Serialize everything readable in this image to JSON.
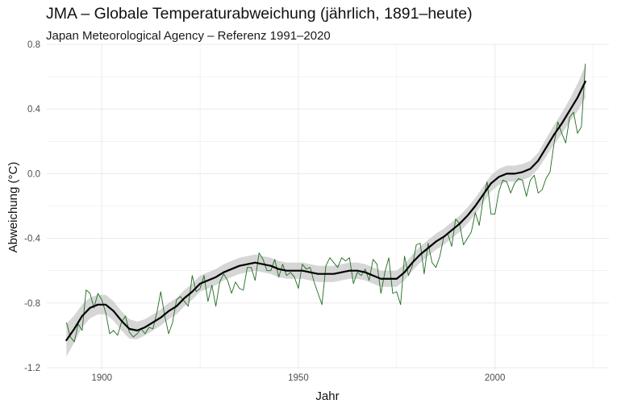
{
  "chart_data": {
    "type": "line",
    "title": "JMA – Globale Temperaturabweichung (jährlich, 1891–heute)",
    "subtitle": "Japan Meteorological Agency – Referenz 1991–2020",
    "xlabel": "Jahr",
    "ylabel": "Abweichung (°C)",
    "xlim": [
      1886,
      2029
    ],
    "ylim": [
      -1.21,
      0.8
    ],
    "x_ticks": [
      1900,
      1950,
      2000
    ],
    "x_tick_labels": [
      "1900",
      "1950",
      "2000"
    ],
    "y_ticks": [
      -1.2,
      -0.8,
      -0.4,
      0.0,
      0.4,
      0.8
    ],
    "y_tick_labels": [
      "-1.2",
      "-0.8",
      "-0.4",
      "0.0",
      "0.4",
      "0.8"
    ],
    "grid": true,
    "colors": {
      "annual": "#1f6b1f",
      "smooth": "#000000",
      "band": "#c8c8c8",
      "grid": "#ebebeb"
    },
    "series": [
      {
        "name": "annual",
        "x": [
          1891,
          1892,
          1893,
          1894,
          1895,
          1896,
          1897,
          1898,
          1899,
          1900,
          1901,
          1902,
          1903,
          1904,
          1905,
          1906,
          1907,
          1908,
          1909,
          1910,
          1911,
          1912,
          1913,
          1914,
          1915,
          1916,
          1917,
          1918,
          1919,
          1920,
          1921,
          1922,
          1923,
          1924,
          1925,
          1926,
          1927,
          1928,
          1929,
          1930,
          1931,
          1932,
          1933,
          1934,
          1935,
          1936,
          1937,
          1938,
          1939,
          1940,
          1941,
          1942,
          1943,
          1944,
          1945,
          1946,
          1947,
          1948,
          1949,
          1950,
          1951,
          1952,
          1953,
          1954,
          1955,
          1956,
          1957,
          1958,
          1959,
          1960,
          1961,
          1962,
          1963,
          1964,
          1965,
          1966,
          1967,
          1968,
          1969,
          1970,
          1971,
          1972,
          1973,
          1974,
          1975,
          1976,
          1977,
          1978,
          1979,
          1980,
          1981,
          1982,
          1983,
          1984,
          1985,
          1986,
          1987,
          1988,
          1989,
          1990,
          1991,
          1992,
          1993,
          1994,
          1995,
          1996,
          1997,
          1998,
          1999,
          2000,
          2001,
          2002,
          2003,
          2004,
          2005,
          2006,
          2007,
          2008,
          2009,
          2010,
          2011,
          2012,
          2013,
          2014,
          2015,
          2016,
          2017,
          2018,
          2019,
          2020,
          2021,
          2022,
          2023
        ],
        "values": [
          -0.92,
          -1.01,
          -1.04,
          -0.93,
          -0.97,
          -0.72,
          -0.74,
          -0.83,
          -0.74,
          -0.78,
          -0.86,
          -0.99,
          -0.97,
          -1.0,
          -0.92,
          -0.88,
          -0.98,
          -1.01,
          -0.99,
          -0.96,
          -0.99,
          -0.95,
          -0.96,
          -0.86,
          -0.73,
          -0.88,
          -0.99,
          -0.92,
          -0.78,
          -0.76,
          -0.79,
          -0.82,
          -0.63,
          -0.73,
          -0.71,
          -0.63,
          -0.79,
          -0.69,
          -0.82,
          -0.67,
          -0.62,
          -0.66,
          -0.74,
          -0.67,
          -0.71,
          -0.72,
          -0.58,
          -0.58,
          -0.66,
          -0.49,
          -0.53,
          -0.6,
          -0.6,
          -0.53,
          -0.64,
          -0.56,
          -0.63,
          -0.61,
          -0.64,
          -0.71,
          -0.56,
          -0.59,
          -0.58,
          -0.67,
          -0.74,
          -0.81,
          -0.57,
          -0.52,
          -0.55,
          -0.58,
          -0.52,
          -0.54,
          -0.52,
          -0.68,
          -0.61,
          -0.63,
          -0.59,
          -0.66,
          -0.53,
          -0.56,
          -0.74,
          -0.61,
          -0.52,
          -0.74,
          -0.73,
          -0.81,
          -0.51,
          -0.63,
          -0.57,
          -0.44,
          -0.43,
          -0.62,
          -0.43,
          -0.55,
          -0.58,
          -0.51,
          -0.39,
          -0.37,
          -0.45,
          -0.28,
          -0.31,
          -0.44,
          -0.4,
          -0.36,
          -0.24,
          -0.32,
          -0.16,
          -0.05,
          -0.25,
          -0.25,
          -0.11,
          -0.04,
          -0.05,
          -0.12,
          -0.06,
          -0.03,
          -0.04,
          -0.14,
          -0.04,
          -0.01,
          -0.12,
          -0.1,
          -0.03,
          0.01,
          0.18,
          0.32,
          0.25,
          0.19,
          0.35,
          0.38,
          0.25,
          0.29,
          0.68
        ]
      },
      {
        "name": "smooth",
        "x": [
          1891,
          1893,
          1895,
          1897,
          1899,
          1901,
          1903,
          1905,
          1907,
          1909,
          1911,
          1913,
          1915,
          1917,
          1919,
          1921,
          1923,
          1925,
          1927,
          1929,
          1931,
          1933,
          1935,
          1937,
          1939,
          1941,
          1943,
          1945,
          1947,
          1949,
          1951,
          1953,
          1955,
          1957,
          1959,
          1961,
          1963,
          1965,
          1967,
          1969,
          1971,
          1973,
          1975,
          1977,
          1979,
          1981,
          1983,
          1985,
          1987,
          1989,
          1991,
          1993,
          1995,
          1997,
          1999,
          2001,
          2003,
          2005,
          2007,
          2009,
          2011,
          2013,
          2015,
          2017,
          2019,
          2021,
          2023
        ],
        "values": [
          -1.03,
          -0.96,
          -0.88,
          -0.83,
          -0.81,
          -0.81,
          -0.85,
          -0.91,
          -0.96,
          -0.97,
          -0.95,
          -0.92,
          -0.89,
          -0.85,
          -0.82,
          -0.77,
          -0.73,
          -0.68,
          -0.66,
          -0.64,
          -0.61,
          -0.59,
          -0.57,
          -0.56,
          -0.55,
          -0.56,
          -0.57,
          -0.59,
          -0.6,
          -0.6,
          -0.6,
          -0.61,
          -0.62,
          -0.62,
          -0.62,
          -0.61,
          -0.6,
          -0.6,
          -0.61,
          -0.63,
          -0.65,
          -0.65,
          -0.65,
          -0.61,
          -0.55,
          -0.5,
          -0.46,
          -0.42,
          -0.39,
          -0.35,
          -0.31,
          -0.26,
          -0.2,
          -0.13,
          -0.06,
          -0.02,
          0.0,
          0.0,
          0.01,
          0.03,
          0.08,
          0.16,
          0.24,
          0.31,
          0.39,
          0.47,
          0.57
        ]
      }
    ],
    "band": {
      "x": [
        1891,
        1895,
        1899,
        1903,
        1907,
        1911,
        1915,
        1919,
        1923,
        1927,
        1931,
        1935,
        1939,
        1943,
        1947,
        1951,
        1955,
        1959,
        1963,
        1967,
        1971,
        1975,
        1979,
        1983,
        1987,
        1991,
        1995,
        1999,
        2003,
        2007,
        2011,
        2015,
        2019,
        2023
      ],
      "half_width": [
        0.1,
        0.07,
        0.06,
        0.06,
        0.06,
        0.05,
        0.05,
        0.05,
        0.05,
        0.05,
        0.05,
        0.05,
        0.05,
        0.05,
        0.05,
        0.05,
        0.05,
        0.05,
        0.05,
        0.05,
        0.05,
        0.05,
        0.05,
        0.05,
        0.05,
        0.05,
        0.05,
        0.05,
        0.05,
        0.05,
        0.05,
        0.06,
        0.07,
        0.1
      ]
    }
  }
}
